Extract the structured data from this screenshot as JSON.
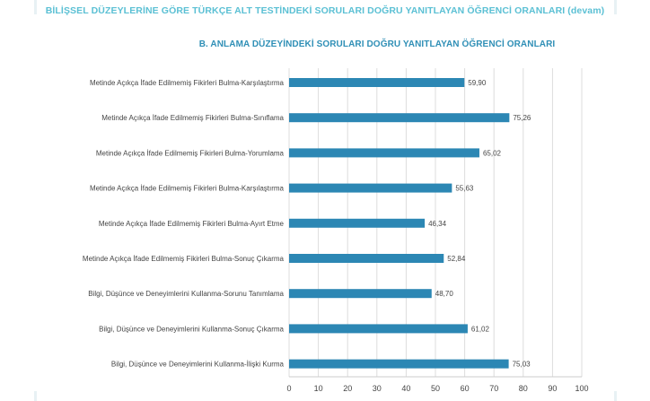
{
  "header": {
    "page_title": "BİLİŞSEL DÜZEYLERİNE GÖRE TÜRKÇE ALT TESTİNDEKİ SORULARI DOĞRU YANITLAYAN ÖĞRENCİ ORANLARI (devam)"
  },
  "chart_data": {
    "type": "bar",
    "orientation": "horizontal",
    "title": "B. ANLAMA DÜZEYİNDEKİ SORULARI DOĞRU YANITLAYAN ÖĞRENCİ ORANLARI",
    "categories": [
      "Metinde Açıkça İfade Edilmemiş Fikirleri Bulma-Karşılaştırma",
      "Metinde Açıkça İfade Edilmemiş Fikirleri Bulma-Sınıflama",
      "Metinde Açıkça İfade Edilmemiş Fikirleri Bulma-Yorumlama",
      "Metinde Açıkça İfade Edilmemiş Fikirleri Bulma-Karşılaştırma",
      "Metinde Açıkça İfade Edilmemiş Fikirleri Bulma-Ayırt Etme",
      "Metinde Açıkça İfade Edilmemiş Fikirleri Bulma-Sonuç Çıkarma",
      "Bilgi, Düşünce ve Deneyimlerini Kullanma-Sorunu Tanımlama",
      "Bilgi, Düşünce ve Deneyimlerini Kullanma-Sonuç Çıkarma",
      "Bilgi, Düşünce ve Deneyimlerini Kullanma-İlişki Kurma"
    ],
    "values": [
      59.9,
      75.26,
      65.02,
      55.63,
      46.34,
      52.84,
      48.7,
      61.02,
      75.03
    ],
    "value_labels": [
      "59,90",
      "75,26",
      "65,02",
      "55,63",
      "46,34",
      "52,84",
      "48,70",
      "61,02",
      "75,03"
    ],
    "xlim": [
      0,
      100
    ],
    "xticks": [
      0,
      10,
      20,
      30,
      40,
      50,
      60,
      70,
      80,
      90,
      100
    ],
    "grid": "vertical",
    "legend": "none",
    "colors": {
      "bar": "#2c87b4",
      "page_title": "#5bc0d4",
      "chart_title": "#2f8fb6",
      "grid": "#dddddd",
      "text": "#444444"
    }
  }
}
